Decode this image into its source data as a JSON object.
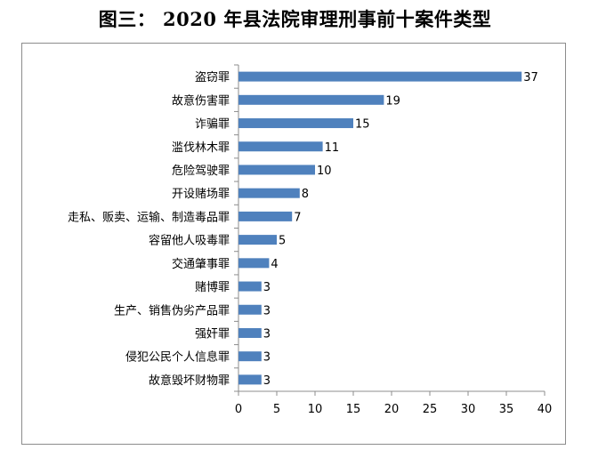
{
  "title": "图三：  2020 年县法院审理刑事前十案件类型",
  "chart_data": {
    "type": "bar",
    "orientation": "horizontal",
    "categories": [
      "盗窃罪",
      "故意伤害罪",
      "诈骗罪",
      "滥伐林木罪",
      "危险驾驶罪",
      "开设赌场罪",
      "走私、贩卖、运输、制造毒品罪",
      "容留他人吸毒罪",
      "交通肇事罪",
      "赌博罪",
      "生产、销售伪劣产品罪",
      "强奸罪",
      "侵犯公民个人信息罪",
      "故意毁坏财物罪"
    ],
    "values": [
      37,
      19,
      15,
      11,
      10,
      8,
      7,
      5,
      4,
      3,
      3,
      3,
      3,
      3
    ],
    "xlim": [
      0,
      40
    ],
    "xticks": [
      0,
      5,
      10,
      15,
      20,
      25,
      30,
      35,
      40
    ],
    "bar_color": "#4f81bd",
    "grid": false,
    "legend": "none"
  }
}
